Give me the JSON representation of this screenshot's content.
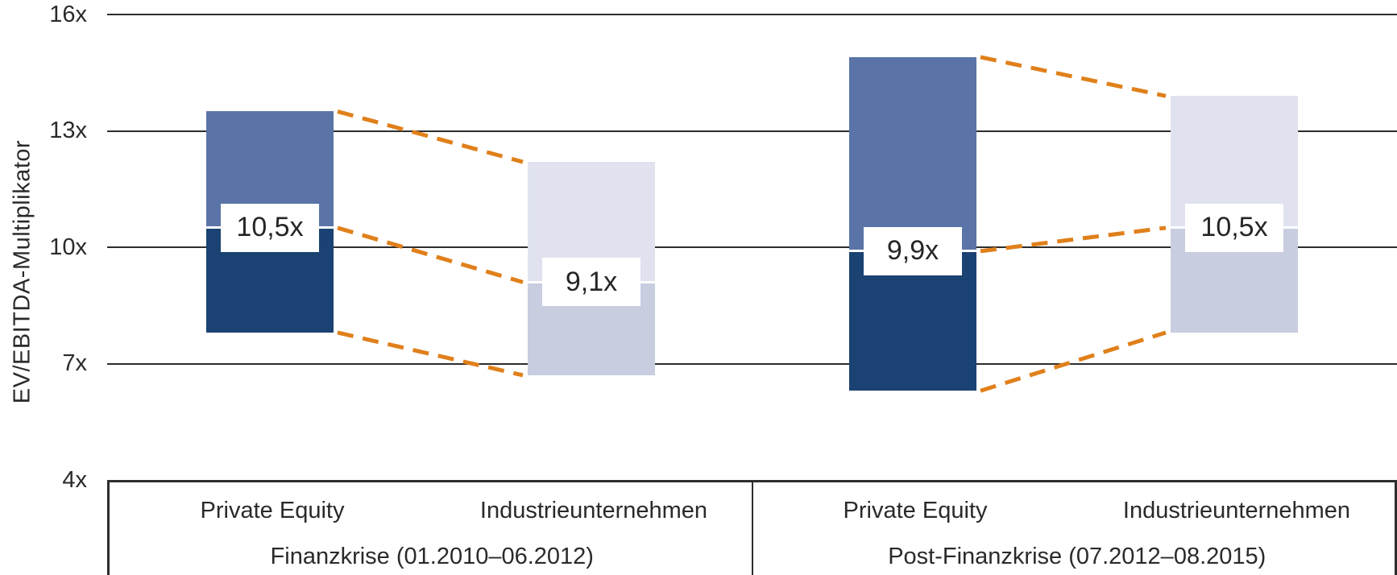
{
  "chart_data": {
    "type": "bar",
    "subtype": "floating-range-bars-with-median",
    "title": "",
    "ylabel": "EV/EBITDA-Multiplikator",
    "xlabel": "",
    "ylim": [
      4,
      16
    ],
    "grid": "horizontal",
    "legend": "none",
    "y_ticks": [
      {
        "label": "16x",
        "value": 16,
        "gridline": true
      },
      {
        "label": "13x",
        "value": 13,
        "gridline": true
      },
      {
        "label": "10x",
        "value": 10,
        "gridline": true
      },
      {
        "label": "7x",
        "value": 7,
        "gridline": true
      },
      {
        "label": "4x",
        "value": 4,
        "gridline": false
      }
    ],
    "groups": [
      {
        "label": "Finanzkrise (01.2010–06.2012)",
        "bars": [
          {
            "category": "Private Equity",
            "min": 7.8,
            "median": 10.5,
            "max": 13.5,
            "median_label": "10,5x",
            "color_top": "#5b74a8",
            "color_bottom": "#1a4272"
          },
          {
            "category": "Industrieunternehmen",
            "min": 6.7,
            "median": 9.1,
            "max": 12.2,
            "median_label": "9,1x",
            "color_top": "#e0e2ef",
            "color_bottom": "#c8cde0"
          }
        ]
      },
      {
        "label": "Post-Finanzkrise (07.2012–08.2015)",
        "bars": [
          {
            "category": "Private Equity",
            "min": 6.3,
            "median": 9.9,
            "max": 14.9,
            "median_label": "9,9x",
            "color_top": "#5b74a8",
            "color_bottom": "#1a4272"
          },
          {
            "category": "Industrieunternehmen",
            "min": 7.8,
            "median": 10.5,
            "max": 13.9,
            "median_label": "10,5x",
            "color_top": "#e0e2ef",
            "color_bottom": "#c8cde0"
          }
        ]
      }
    ],
    "connectors": {
      "style": "dashed",
      "color": "#e0801b",
      "connect_keys": [
        "max",
        "median",
        "min"
      ],
      "scope": "between bars within each period group"
    }
  },
  "colors": {
    "background": "#ffffff",
    "gridline": "#2d2d2d",
    "axis_text": "#2a2a2a",
    "pe_bar_top": "#5b74a8",
    "pe_bar_bottom": "#1a4272",
    "industry_bar_top": "#e0e2ef",
    "industry_bar_bottom": "#c8cde0",
    "connector_dash": "#e0801b",
    "median_box_bg": "#ffffff"
  }
}
